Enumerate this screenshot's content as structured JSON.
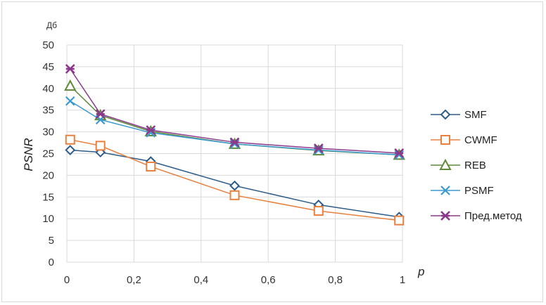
{
  "chart_data": {
    "type": "line",
    "title": "",
    "xlabel": "p",
    "ylabel": "PSNR",
    "y_unit": "Дб",
    "xlim": [
      0,
      1
    ],
    "ylim": [
      0,
      50
    ],
    "grid": true,
    "legend_position": "right",
    "x_ticks": [
      "0",
      "0,2",
      "0,4",
      "0,6",
      "0,8",
      "1"
    ],
    "y_ticks": [
      "0",
      "5",
      "10",
      "15",
      "20",
      "25",
      "30",
      "35",
      "40",
      "45",
      "50"
    ],
    "x": [
      0.01,
      0.1,
      0.25,
      0.5,
      0.75,
      0.99
    ],
    "series": [
      {
        "name": "SMF",
        "color": "#2e5c8a",
        "marker": "diamond",
        "values": [
          25.8,
          25.3,
          23.2,
          17.6,
          13.2,
          10.4
        ]
      },
      {
        "name": "CWMF",
        "color": "#e8803e",
        "marker": "square",
        "values": [
          28.2,
          26.8,
          22.0,
          15.4,
          11.8,
          9.6
        ]
      },
      {
        "name": "REB",
        "color": "#5e8a3a",
        "marker": "triangle",
        "values": [
          40.6,
          33.8,
          30.1,
          27.2,
          25.7,
          24.7
        ]
      },
      {
        "name": "PSMF",
        "color": "#3a9ad0",
        "marker": "x",
        "values": [
          37.1,
          32.8,
          29.8,
          27.2,
          25.8,
          24.7
        ]
      },
      {
        "name": "Пред.метод",
        "color": "#8b3a8b",
        "marker": "star",
        "values": [
          44.5,
          34.1,
          30.4,
          27.6,
          26.2,
          25.1
        ]
      }
    ]
  }
}
